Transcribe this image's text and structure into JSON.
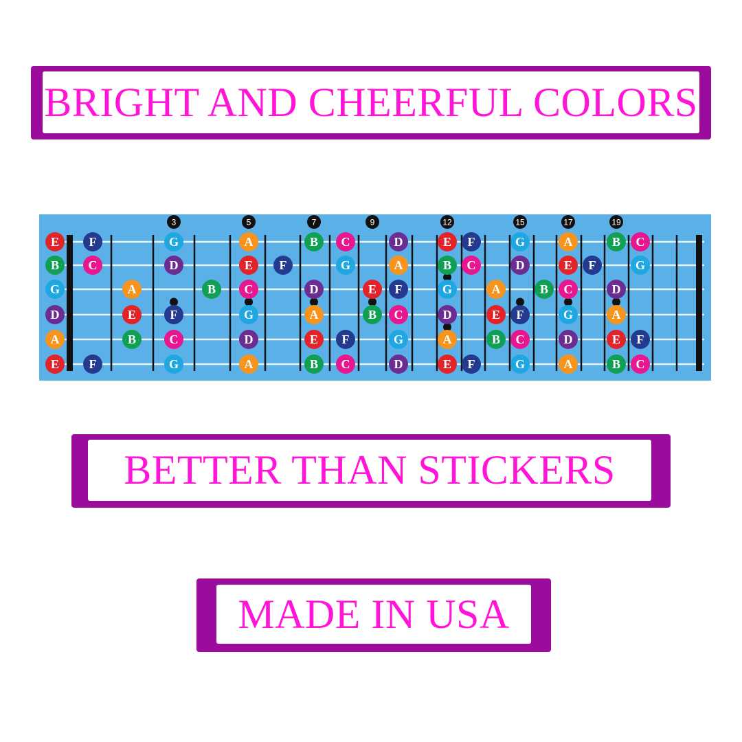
{
  "banners": [
    {
      "text": "BRIGHT AND CHEERFUL COLORS"
    },
    {
      "text": "BETTER THAN STICKERS"
    },
    {
      "text": "MADE IN USA"
    }
  ],
  "colors": {
    "banner_border": "#9c0c9c",
    "banner_text": "#ff14d8",
    "board": "#5cb0e8"
  },
  "fretboard": {
    "fret_range": [
      0,
      20
    ],
    "fret_markers": [
      "3",
      "5",
      "7",
      "9",
      "12",
      "15",
      "17",
      "19"
    ],
    "inlay_frets": [
      3,
      5,
      7,
      9,
      12,
      15,
      17,
      19
    ],
    "double_inlay_frets": [
      12
    ],
    "note_colors": {
      "E": "#e3232a",
      "F": "#243a8f",
      "G": "#1fa7e1",
      "A": "#f7941e",
      "B": "#10a053",
      "C": "#e8178f",
      "D": "#6b2d92"
    },
    "strings": [
      {
        "name": "E",
        "notes": [
          [
            0,
            "E"
          ],
          [
            1,
            "F"
          ],
          [
            3,
            "G"
          ],
          [
            5,
            "A"
          ],
          [
            7,
            "B"
          ],
          [
            8,
            "C"
          ],
          [
            10,
            "D"
          ],
          [
            12,
            "E"
          ],
          [
            13,
            "F"
          ],
          [
            15,
            "G"
          ],
          [
            17,
            "A"
          ],
          [
            19,
            "B"
          ],
          [
            20,
            "C"
          ]
        ]
      },
      {
        "name": "B",
        "notes": [
          [
            0,
            "B"
          ],
          [
            1,
            "C"
          ],
          [
            3,
            "D"
          ],
          [
            5,
            "E"
          ],
          [
            6,
            "F"
          ],
          [
            8,
            "G"
          ],
          [
            10,
            "A"
          ],
          [
            12,
            "B"
          ],
          [
            13,
            "C"
          ],
          [
            15,
            "D"
          ],
          [
            17,
            "E"
          ],
          [
            18,
            "F"
          ],
          [
            20,
            "G"
          ]
        ]
      },
      {
        "name": "G",
        "notes": [
          [
            0,
            "G"
          ],
          [
            2,
            "A"
          ],
          [
            4,
            "B"
          ],
          [
            5,
            "C"
          ],
          [
            7,
            "D"
          ],
          [
            9,
            "E"
          ],
          [
            10,
            "F"
          ],
          [
            12,
            "G"
          ],
          [
            14,
            "A"
          ],
          [
            16,
            "B"
          ],
          [
            17,
            "C"
          ],
          [
            19,
            "D"
          ]
        ]
      },
      {
        "name": "D",
        "notes": [
          [
            0,
            "D"
          ],
          [
            2,
            "E"
          ],
          [
            3,
            "F"
          ],
          [
            5,
            "G"
          ],
          [
            7,
            "A"
          ],
          [
            9,
            "B"
          ],
          [
            10,
            "C"
          ],
          [
            12,
            "D"
          ],
          [
            14,
            "E"
          ],
          [
            15,
            "F"
          ],
          [
            17,
            "G"
          ],
          [
            19,
            "A"
          ]
        ]
      },
      {
        "name": "A",
        "notes": [
          [
            0,
            "A"
          ],
          [
            2,
            "B"
          ],
          [
            3,
            "C"
          ],
          [
            5,
            "D"
          ],
          [
            7,
            "E"
          ],
          [
            8,
            "F"
          ],
          [
            10,
            "G"
          ],
          [
            12,
            "A"
          ],
          [
            14,
            "B"
          ],
          [
            15,
            "C"
          ],
          [
            17,
            "D"
          ],
          [
            19,
            "E"
          ],
          [
            20,
            "F"
          ]
        ]
      },
      {
        "name": "E",
        "notes": [
          [
            0,
            "E"
          ],
          [
            1,
            "F"
          ],
          [
            3,
            "G"
          ],
          [
            5,
            "A"
          ],
          [
            7,
            "B"
          ],
          [
            8,
            "C"
          ],
          [
            10,
            "D"
          ],
          [
            12,
            "E"
          ],
          [
            13,
            "F"
          ],
          [
            15,
            "G"
          ],
          [
            17,
            "A"
          ],
          [
            19,
            "B"
          ],
          [
            20,
            "C"
          ]
        ]
      }
    ]
  }
}
